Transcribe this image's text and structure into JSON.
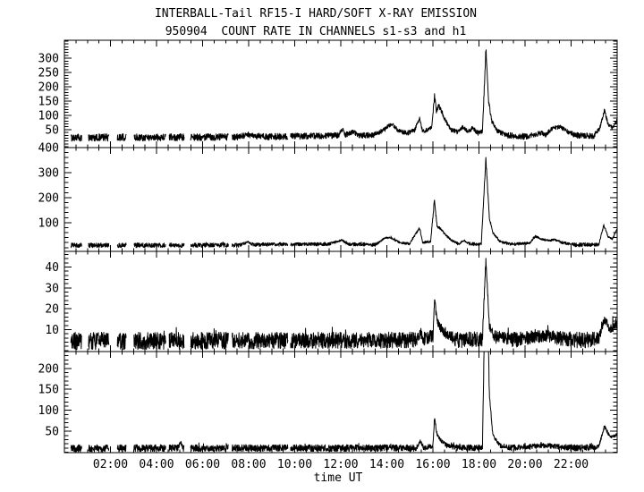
{
  "title": "INTERBALL-Tail RF15-I HARD/SOFT X-RAY EMISSION",
  "subtitle": "950904  COUNT RATE IN CHANNELS s1-s3 and h1",
  "chart_data": {
    "type": "line",
    "title": "INTERBALL-Tail RF15-I HARD/SOFT X-RAY EMISSION",
    "subtitle": "950904  COUNT RATE IN CHANNELS s1-s3 and h1",
    "xlabel": "time UT",
    "x_unit": "hours",
    "xlim": [
      0,
      24
    ],
    "line_color": "#000000",
    "frame_color": "#000000",
    "background": "#ffffff",
    "grid": false,
    "legend": "none",
    "xticks": [
      {
        "h": 2,
        "label": "02:00"
      },
      {
        "h": 4,
        "label": "04:00"
      },
      {
        "h": 6,
        "label": "06:00"
      },
      {
        "h": 8,
        "label": "08:00"
      },
      {
        "h": 10,
        "label": "10:00"
      },
      {
        "h": 12,
        "label": "12:00"
      },
      {
        "h": 14,
        "label": "14:00"
      },
      {
        "h": 16,
        "label": "16:00"
      },
      {
        "h": 18,
        "label": "18:00"
      },
      {
        "h": 20,
        "label": "20:00"
      },
      {
        "h": 22,
        "label": "22:00"
      }
    ],
    "xtick_minor_hours": 0.5,
    "gaps_hours": [
      [
        0,
        0.28
      ],
      [
        0.75,
        1.05
      ],
      [
        1.93,
        2.3
      ],
      [
        2.68,
        3.02
      ],
      [
        4.4,
        4.55
      ],
      [
        5.2,
        5.48
      ],
      [
        7.12,
        7.28
      ],
      [
        9.7,
        9.82
      ]
    ],
    "panels": [
      {
        "name": "s1",
        "ylim": [
          -13,
          363
        ],
        "yticks": [
          50,
          100,
          150,
          200,
          250,
          300
        ],
        "ytick_minor": 10,
        "baseline": 22,
        "noise_abs": 12,
        "noise_rel": 0.045,
        "hair": 0,
        "clamp_min": 8,
        "envelope": [
          [
            0,
            22
          ],
          [
            7.6,
            24
          ],
          [
            7.95,
            34
          ],
          [
            8.2,
            26
          ],
          [
            9,
            25
          ],
          [
            11,
            28
          ],
          [
            11.9,
            30
          ],
          [
            12.08,
            52
          ],
          [
            12.2,
            32
          ],
          [
            12.55,
            42
          ],
          [
            12.8,
            30
          ],
          [
            13.4,
            30
          ],
          [
            13.9,
            50
          ],
          [
            14.2,
            72
          ],
          [
            14.5,
            45
          ],
          [
            14.9,
            38
          ],
          [
            15.2,
            48
          ],
          [
            15.42,
            88
          ],
          [
            15.55,
            45
          ],
          [
            15.8,
            50
          ],
          [
            15.95,
            60
          ],
          [
            16.07,
            170
          ],
          [
            16.15,
            115
          ],
          [
            16.25,
            135
          ],
          [
            16.4,
            110
          ],
          [
            16.55,
            80
          ],
          [
            16.8,
            50
          ],
          [
            17.05,
            42
          ],
          [
            17.3,
            60
          ],
          [
            17.5,
            42
          ],
          [
            17.72,
            55
          ],
          [
            17.95,
            38
          ],
          [
            18.15,
            45
          ],
          [
            18.3,
            330
          ],
          [
            18.42,
            150
          ],
          [
            18.55,
            80
          ],
          [
            18.8,
            45
          ],
          [
            19.2,
            30
          ],
          [
            20,
            26
          ],
          [
            20.7,
            38
          ],
          [
            20.9,
            32
          ],
          [
            21.2,
            55
          ],
          [
            21.5,
            60
          ],
          [
            21.8,
            45
          ],
          [
            22.2,
            30
          ],
          [
            23,
            28
          ],
          [
            23.25,
            55
          ],
          [
            23.45,
            118
          ],
          [
            23.6,
            70
          ],
          [
            23.8,
            55
          ],
          [
            24,
            85
          ]
        ]
      },
      {
        "name": "s2",
        "ylim": [
          -15,
          400
        ],
        "yticks": [
          100,
          200,
          300,
          400
        ],
        "ytick_minor": 20,
        "baseline": 9,
        "noise_abs": 9,
        "noise_rel": 0.05,
        "hair": 4,
        "clamp_min": 0.3,
        "envelope": [
          [
            0,
            9
          ],
          [
            7.6,
            10
          ],
          [
            7.95,
            22
          ],
          [
            8.2,
            12
          ],
          [
            11.5,
            14
          ],
          [
            12.05,
            30
          ],
          [
            12.3,
            14
          ],
          [
            13.5,
            12
          ],
          [
            13.95,
            40
          ],
          [
            14.2,
            38
          ],
          [
            14.6,
            18
          ],
          [
            15.0,
            16
          ],
          [
            15.42,
            80
          ],
          [
            15.55,
            20
          ],
          [
            15.9,
            25
          ],
          [
            16.07,
            190
          ],
          [
            16.18,
            85
          ],
          [
            16.35,
            75
          ],
          [
            16.55,
            50
          ],
          [
            16.8,
            30
          ],
          [
            17.1,
            15
          ],
          [
            17.35,
            28
          ],
          [
            17.6,
            14
          ],
          [
            18.1,
            14
          ],
          [
            18.3,
            353
          ],
          [
            18.45,
            120
          ],
          [
            18.6,
            60
          ],
          [
            18.9,
            25
          ],
          [
            19.3,
            13
          ],
          [
            20.2,
            18
          ],
          [
            20.45,
            45
          ],
          [
            20.7,
            35
          ],
          [
            21.0,
            28
          ],
          [
            21.3,
            32
          ],
          [
            21.6,
            20
          ],
          [
            22.2,
            11
          ],
          [
            23.2,
            12
          ],
          [
            23.42,
            90
          ],
          [
            23.6,
            45
          ],
          [
            23.8,
            35
          ],
          [
            24,
            75
          ]
        ]
      },
      {
        "name": "s3",
        "ylim": [
          -0.5,
          47.5
        ],
        "yticks": [
          10,
          20,
          30,
          40
        ],
        "ytick_minor": 2,
        "baseline": 4.5,
        "noise_abs": 4,
        "noise_rel": 0.05,
        "hair": 3,
        "clamp_min": 0.3,
        "envelope": [
          [
            0,
            4.5
          ],
          [
            15.3,
            5
          ],
          [
            15.45,
            9
          ],
          [
            15.6,
            5.5
          ],
          [
            16.0,
            7
          ],
          [
            16.07,
            24
          ],
          [
            16.2,
            13
          ],
          [
            16.4,
            10
          ],
          [
            16.7,
            7
          ],
          [
            17.1,
            5
          ],
          [
            18.15,
            5.5
          ],
          [
            18.3,
            44
          ],
          [
            18.45,
            12
          ],
          [
            18.7,
            6.5
          ],
          [
            19.5,
            5
          ],
          [
            20.3,
            6.5
          ],
          [
            20.9,
            7
          ],
          [
            21.4,
            6
          ],
          [
            22.5,
            4.8
          ],
          [
            23.2,
            6
          ],
          [
            23.45,
            15
          ],
          [
            23.7,
            10
          ],
          [
            24,
            13
          ]
        ]
      },
      {
        "name": "h1",
        "ylim": [
          -1,
          240
        ],
        "yticks": [
          50,
          100,
          150,
          200
        ],
        "ytick_minor": 10,
        "baseline": 9,
        "noise_abs": 8.5,
        "noise_rel": 0.05,
        "hair": 4,
        "clamp_min": 0.5,
        "envelope": [
          [
            0,
            9
          ],
          [
            4.95,
            10
          ],
          [
            5.05,
            24
          ],
          [
            5.15,
            10
          ],
          [
            15.3,
            10
          ],
          [
            15.45,
            28
          ],
          [
            15.6,
            11
          ],
          [
            16.0,
            14
          ],
          [
            16.07,
            83
          ],
          [
            16.18,
            42
          ],
          [
            16.35,
            28
          ],
          [
            16.6,
            16
          ],
          [
            17.0,
            11
          ],
          [
            18.15,
            11
          ],
          [
            18.29,
            470
          ],
          [
            18.33,
            470
          ],
          [
            18.45,
            140
          ],
          [
            18.6,
            40
          ],
          [
            18.9,
            16
          ],
          [
            19.4,
            11
          ],
          [
            20.2,
            13
          ],
          [
            20.6,
            16
          ],
          [
            21.1,
            15
          ],
          [
            21.6,
            12
          ],
          [
            22.5,
            10
          ],
          [
            23.2,
            13
          ],
          [
            23.45,
            62
          ],
          [
            23.7,
            35
          ],
          [
            24,
            42
          ]
        ]
      }
    ]
  }
}
